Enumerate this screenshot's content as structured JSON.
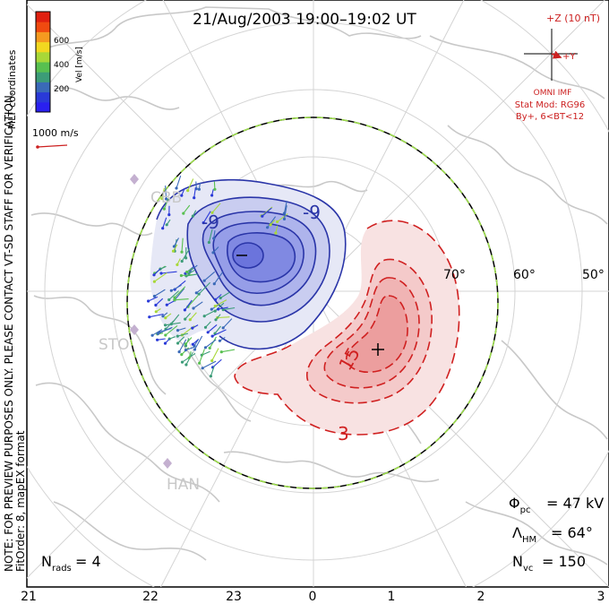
{
  "header": {
    "title": "21/Aug/2003 19:00–19:02 UT"
  },
  "colorbar": {
    "label": "Vel [m/s]",
    "ticks": [
      "600",
      "400",
      "200"
    ],
    "colors": [
      "#e02010",
      "#f04a10",
      "#f59a20",
      "#f2d820",
      "#a8d838",
      "#58c050",
      "#3c9c78",
      "#3a6ab8",
      "#2a3ad8",
      "#2a20f0"
    ]
  },
  "coords_label": "MLT coordinates",
  "scale_vector": {
    "label": "1000 m/s",
    "color": "#cc2020"
  },
  "note": {
    "line1": "NOTE: FOR PREVIEW PURPOSES ONLY. PLEASE CONTACT VT-SD STAFF FOR VERIFICATION.",
    "line2": "FitOrder: 8, mapEX format"
  },
  "imf": {
    "z_label": "+Z (10 nT)",
    "y_label": "+Y",
    "source": "OMNI IMF",
    "stat_mod": "Stat Mod: RG96",
    "condition": "By+, 6<BT<12",
    "color": "#cc2020"
  },
  "lat_labels": [
    "70°",
    "60°",
    "50°"
  ],
  "mlt_labels": [
    "21",
    "22",
    "23",
    "0",
    "1",
    "2",
    "3"
  ],
  "stations": [
    "CBB",
    "STO",
    "HAN"
  ],
  "contours": {
    "negative_label": "-9",
    "positive_labels": [
      "15",
      "3"
    ],
    "negative_color": "#2a35a8",
    "positive_color": "#d02020"
  },
  "stats": {
    "phi_label": "Φ",
    "phi_sub": "pc",
    "phi_value": "= 47 kV",
    "lambda_label": "Λ",
    "lambda_sub": "HM",
    "lambda_value": "= 64°",
    "nvc_label": "N",
    "nvc_sub": "vc",
    "nvc_value": "= 150",
    "nrads_label": "N",
    "nrads_sub": "rads",
    "nrads_value": "= 4"
  }
}
